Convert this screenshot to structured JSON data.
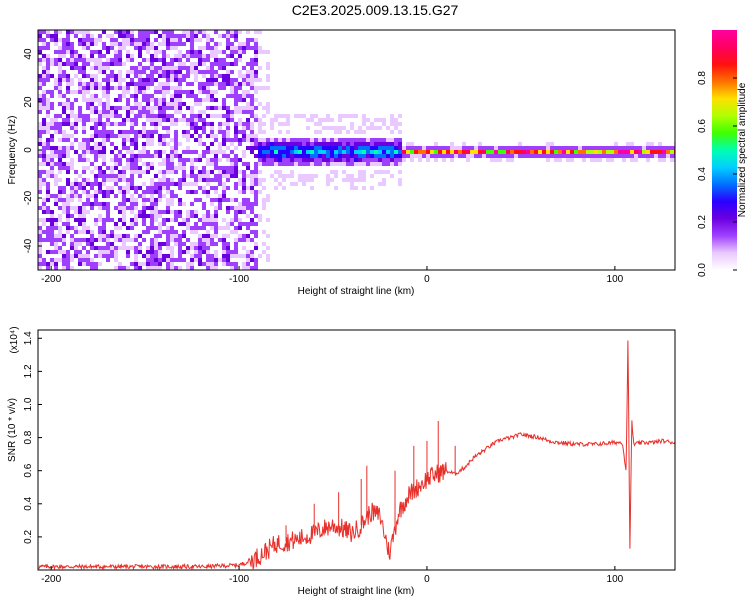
{
  "chart_data": [
    {
      "type": "heatmap",
      "title": "C2E3.2025.009.13.15.G27",
      "xlabel": "Height of straight line (km)",
      "ylabel": "Frequency (Hz)",
      "xlim": [
        -207,
        132
      ],
      "ylim": [
        -50,
        50
      ],
      "xticks": [
        "-200",
        "-100",
        "0",
        "100"
      ],
      "yticks": [
        "40",
        "20",
        "0",
        "-20",
        "-40"
      ],
      "colorbar": {
        "label": "Normalized spectral amplitude",
        "range": [
          0,
          1
        ],
        "ticks": [
          "0.0",
          "0.2",
          "0.4",
          "0.6",
          "0.8"
        ],
        "colors": [
          "#ffffff",
          "#e9c9ff",
          "#a040ff",
          "#6a00e0",
          "#2a00ff",
          "#0070ff",
          "#00d0ff",
          "#00ffb0",
          "#40ff00",
          "#b0ff00",
          "#ffe000",
          "#ff7000",
          "#ff1010",
          "#ff0060",
          "#ff00a0"
        ]
      },
      "regions": [
        {
          "from_km": -207,
          "to_km": -92,
          "description": "broadband noise",
          "amplitude": 0.2
        },
        {
          "from_km": -92,
          "to_km": -15,
          "description": "diffuse band",
          "freq_spread_hz": 7,
          "amplitude": 0.45
        },
        {
          "from_km": -15,
          "to_km": 132,
          "description": "narrow band at 0 Hz",
          "freq_spread_hz": 2,
          "amplitude": 0.95
        }
      ]
    },
    {
      "type": "line",
      "xlabel": "Height of straight line (km)",
      "ylabel": "SNR (10 * v/v)",
      "y_scale_label": "(x10⁴)",
      "xlim": [
        -207,
        132
      ],
      "ylim": [
        0,
        1.45
      ],
      "xticks": [
        "-200",
        "-100",
        "0",
        "100"
      ],
      "yticks": [
        "0.2",
        "0.4",
        "0.6",
        "0.8",
        "1.0",
        "1.2",
        "1.4"
      ],
      "color": "#e8302a",
      "series": [
        {
          "x": [
            -207,
            -180,
            -150,
            -120,
            -100,
            -95,
            -90,
            -85,
            -80,
            -75,
            -70,
            -65,
            -60,
            -55,
            -50,
            -45,
            -40,
            -35,
            -30,
            -25,
            -20,
            -15,
            -10,
            -5,
            0,
            5,
            10,
            15,
            20,
            25,
            30,
            35,
            40,
            45,
            50,
            55,
            60,
            65,
            70,
            80,
            90,
            100,
            104,
            106,
            107,
            108,
            109,
            110,
            115,
            120,
            125,
            132
          ],
          "y": [
            0.02,
            0.02,
            0.02,
            0.02,
            0.03,
            0.05,
            0.08,
            0.12,
            0.16,
            0.17,
            0.18,
            0.2,
            0.22,
            0.25,
            0.27,
            0.25,
            0.22,
            0.27,
            0.35,
            0.33,
            0.1,
            0.35,
            0.45,
            0.5,
            0.55,
            0.58,
            0.6,
            0.58,
            0.62,
            0.68,
            0.72,
            0.76,
            0.79,
            0.8,
            0.82,
            0.81,
            0.8,
            0.78,
            0.77,
            0.76,
            0.76,
            0.77,
            0.77,
            0.6,
            1.42,
            0.12,
            0.9,
            0.76,
            0.77,
            0.77,
            0.78,
            0.77
          ],
          "peaks": [
            {
              "x": -75,
              "y": 0.27
            },
            {
              "x": -60,
              "y": 0.4
            },
            {
              "x": -47,
              "y": 0.47
            },
            {
              "x": -35,
              "y": 0.55
            },
            {
              "x": -32,
              "y": 0.63
            },
            {
              "x": -17,
              "y": 0.6
            },
            {
              "x": -7,
              "y": 0.75
            },
            {
              "x": 6,
              "y": 0.9
            },
            {
              "x": 0,
              "y": 0.78
            },
            {
              "x": 15,
              "y": 0.75
            }
          ]
        }
      ]
    }
  ]
}
